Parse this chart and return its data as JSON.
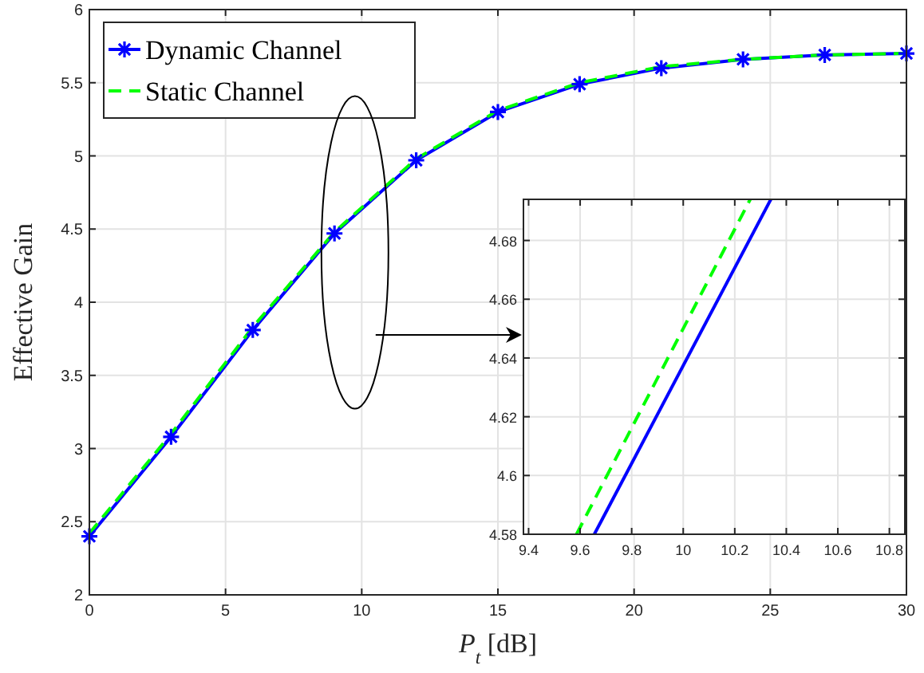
{
  "chart_data": [
    {
      "type": "line",
      "xlabel": "P$_{t}$ [dB]",
      "ylabel": "Effective Gain",
      "x": [
        0,
        3,
        6,
        9,
        12,
        15,
        18,
        21,
        24,
        27,
        30
      ],
      "series": [
        {
          "name": "Dynamic Channel",
          "color": "#0000ff",
          "values": [
            2.4,
            3.08,
            3.81,
            4.47,
            4.97,
            5.3,
            5.49,
            5.6,
            5.66,
            5.69,
            5.7
          ],
          "marker": "cross",
          "line_style": "solid"
        },
        {
          "name": "Static Channel",
          "color": "#00ff00",
          "values": [
            2.42,
            3.1,
            3.83,
            4.48,
            4.98,
            5.31,
            5.5,
            5.61,
            5.66,
            5.69,
            5.7
          ],
          "marker": "none",
          "line_style": "dashed"
        }
      ],
      "xlim": [
        0,
        30
      ],
      "ylim": [
        2,
        6
      ],
      "xticks": [
        0,
        5,
        10,
        15,
        20,
        25,
        30
      ],
      "yticks": [
        2,
        2.5,
        3,
        3.5,
        4,
        4.5,
        5,
        5.5,
        6
      ],
      "grid": true,
      "legend": "top left"
    },
    {
      "type": "line",
      "series": [
        {
          "color": "#0000ff",
          "x": [
            9.655,
            10.34
          ],
          "values": [
            4.58,
            4.694
          ],
          "marker": "none",
          "line_style": "solid"
        },
        {
          "color": "#00ff00",
          "x": [
            9.586,
            10.26
          ],
          "values": [
            4.58,
            4.694
          ],
          "marker": "none",
          "line_style": "dashed"
        }
      ],
      "xlim": [
        9.38,
        10.86
      ],
      "ylim": [
        4.58,
        4.694
      ],
      "xticks": [
        9.4,
        9.6,
        9.8,
        10,
        10.2,
        10.4,
        10.6,
        10.8
      ],
      "yticks": [
        4.58,
        4.6,
        4.62,
        4.64,
        4.66,
        4.68
      ],
      "grid": true
    }
  ]
}
